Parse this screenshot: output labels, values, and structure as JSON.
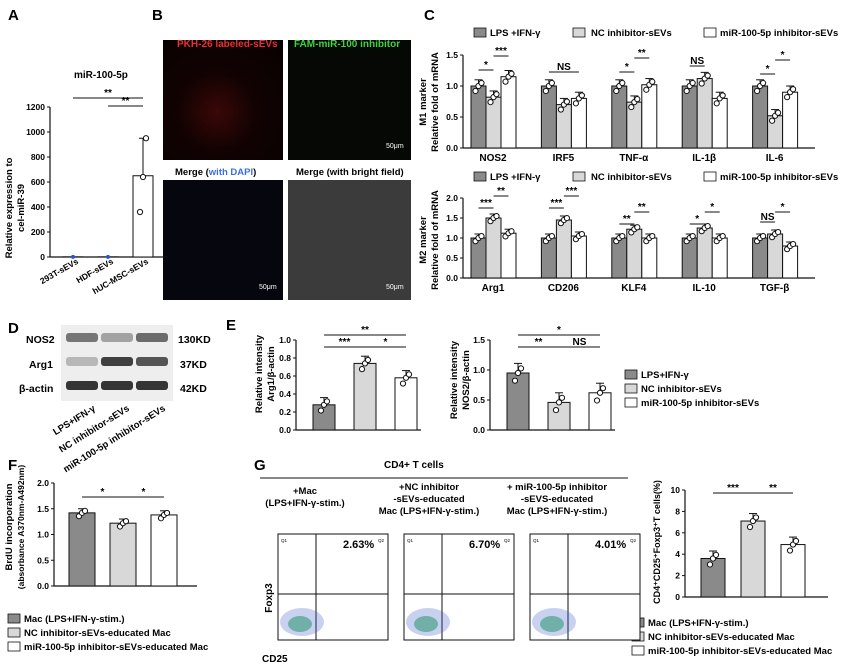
{
  "colors": {
    "dark_gray": "#8a8a8a",
    "light_gray": "#d8d8d8",
    "white": "#ffffff",
    "axis": "#111111"
  },
  "chart_data": [
    {
      "panel": "A",
      "type": "bar",
      "title": "miR-100-5p",
      "ylabel": "Relative expression to cel-miR-39",
      "categories": [
        "293T-sEVs",
        "HDF-sEVs",
        "hUC-MSC-sEVs"
      ],
      "values": [
        1,
        1,
        650
      ],
      "ylim": [
        0,
        1200
      ],
      "yticks": [
        0,
        200,
        400,
        600,
        800,
        1000,
        1200
      ],
      "annotations": [
        "**",
        "**"
      ]
    },
    {
      "panel": "B",
      "type": "table",
      "images": [
        "PKH-26 labeled-sEVs",
        "FAM-miR-100 inhibitor",
        "Merge (with DAPI)",
        "Merge (with bright field)"
      ],
      "scale_bar": "50μm"
    },
    {
      "panel": "C-M1",
      "type": "bar",
      "ylabel": "M1 marker Relative fold of mRNA",
      "categories": [
        "NOS2",
        "IRF5",
        "TNF-α",
        "IL-1β",
        "IL-6"
      ],
      "series": [
        {
          "name": "LPS +IFN-γ",
          "values": [
            1.0,
            1.0,
            1.0,
            1.0,
            1.0
          ]
        },
        {
          "name": "NC  inhibitor-sEVs",
          "values": [
            0.82,
            0.7,
            0.74,
            1.12,
            0.52
          ]
        },
        {
          "name": "miR-100-5p inhibitor-sEVs",
          "values": [
            1.15,
            0.8,
            1.02,
            0.8,
            0.9
          ]
        }
      ],
      "ylim": [
        0,
        1.5
      ],
      "yticks": [
        0.0,
        0.5,
        1.0,
        1.5
      ],
      "annotations": [
        "*",
        "***",
        "NS",
        "*",
        "**",
        "NS",
        "*",
        "*"
      ]
    },
    {
      "panel": "C-M2",
      "type": "bar",
      "ylabel": "M2 marker Relative fold of mRNA",
      "categories": [
        "Arg1",
        "CD206",
        "KLF4",
        "IL-10",
        "TGF-β"
      ],
      "series": [
        {
          "name": "LPS +IFN-γ",
          "values": [
            1.0,
            1.0,
            1.0,
            1.0,
            1.0
          ]
        },
        {
          "name": "NC  inhibitor-sEVs",
          "values": [
            1.5,
            1.45,
            1.22,
            1.25,
            1.1
          ]
        },
        {
          "name": "miR-100-5p inhibitor-sEVs",
          "values": [
            1.12,
            1.05,
            1.0,
            1.0,
            0.8
          ]
        }
      ],
      "ylim": [
        0,
        2.0
      ],
      "yticks": [
        0.0,
        0.5,
        1.0,
        1.5,
        2.0
      ],
      "annotations": [
        "***",
        "**",
        "***",
        "***",
        "**",
        "**",
        "*",
        "*",
        "NS",
        "*"
      ]
    },
    {
      "panel": "E-left",
      "type": "bar",
      "ylabel": "Relative intensity Arg1/β-actin",
      "categories": [
        "LPS+IFN-γ",
        "NC inhibitor-sEVs",
        "miR-100-5p inhibitor-sEVs"
      ],
      "values": [
        0.28,
        0.74,
        0.58
      ],
      "ylim": [
        0,
        1.0
      ],
      "yticks": [
        0.0,
        0.2,
        0.4,
        0.6,
        0.8,
        1.0
      ],
      "annotations": [
        "**",
        "***",
        "*"
      ]
    },
    {
      "panel": "E-right",
      "type": "bar",
      "ylabel": "Relative intensity NOS2/β-actin",
      "categories": [
        "LPS+IFN-γ",
        "NC inhibitor-sEVs",
        "miR-100-5p inhibitor-sEVs"
      ],
      "values": [
        0.95,
        0.46,
        0.62
      ],
      "ylim": [
        0,
        1.5
      ],
      "yticks": [
        0.0,
        0.5,
        1.0,
        1.5
      ],
      "annotations": [
        "*",
        "**",
        "NS"
      ]
    },
    {
      "panel": "F",
      "type": "bar",
      "ylabel": "BrdU incorporation (absorbance A370nm-A492nm)",
      "categories": [
        "Mac (LPS+IFN-γ-stim.)",
        "NC inhibitor-sEVs-educated Mac",
        "miR-100-5p inhibitor-sEVs-educated Mac"
      ],
      "values": [
        1.42,
        1.22,
        1.38
      ],
      "ylim": [
        0,
        2.0
      ],
      "yticks": [
        0.0,
        0.5,
        1.0,
        1.5,
        2.0
      ],
      "annotations": [
        "*",
        "*"
      ]
    },
    {
      "panel": "G-flow",
      "type": "scatter",
      "xlabel": "CD25",
      "ylabel": "Foxp3",
      "header": "CD4+ T cells",
      "plots": [
        {
          "title": "+Mac (LPS+IFN-γ-stim.)",
          "percent": "2.63%"
        },
        {
          "title": "+NC inhibitor -sEVs-educated Mac (LPS+IFN-γ-stim.)",
          "percent": "6.70%"
        },
        {
          "title": "+ miR-100-5p inhibitor -sEVS-educated Mac (LPS+IFN-γ-stim.)",
          "percent": "4.01%"
        }
      ]
    },
    {
      "panel": "G-bar",
      "type": "bar",
      "ylabel": "CD4⁺CD25⁺Foxp3⁺T cells(%)",
      "categories": [
        "Mac (LPS+IFN-γ-stim.)",
        "NC inhibitor-sEVs-educated Mac",
        "miR-100-5p inhibitor-sEVs-educated Mac"
      ],
      "values": [
        3.6,
        7.1,
        4.9
      ],
      "ylim": [
        0,
        10
      ],
      "yticks": [
        0,
        2,
        4,
        6,
        8,
        10
      ],
      "annotations": [
        "***",
        "**"
      ]
    }
  ],
  "panels": {
    "A": {
      "letter": "A",
      "title": "miR-100-5p",
      "ylabel_1": "Relative expression to",
      "ylabel_2": "cel-miR-39",
      "xlabels": [
        "293T-sEVs",
        "HDF-sEVs",
        "hUC-MSC-sEVs"
      ],
      "yticks": [
        "0",
        "200",
        "400",
        "600",
        "800",
        "1000",
        "1200"
      ],
      "sig": [
        "**",
        "**"
      ]
    },
    "B": {
      "letter": "B",
      "label_pkh": "PKH-26 labeled-sEVs",
      "label_fam": "FAM-miR-100 inhibitor",
      "label_merge_a": "Merge (",
      "label_merge_b": "with DAPI",
      "label_merge_c": ")",
      "label_merge_bright": "Merge (with bright field)",
      "scale": "50μm"
    },
    "C": {
      "letter": "C",
      "legend": [
        "LPS +IFN-γ",
        "NC  inhibitor-sEVs",
        "miR-100-5p inhibitor-sEVs"
      ],
      "m1_ylabel_1": "M1 marker",
      "m1_ylabel_2": "Relative fold of mRNA",
      "m2_ylabel_1": "M2 marker",
      "m2_ylabel_2": "Relative fold of mRNA",
      "m1_categories": [
        "NOS2",
        "IRF5",
        "TNF-α",
        "IL-1β",
        "IL-6"
      ],
      "m2_categories": [
        "Arg1",
        "CD206",
        "KLF4",
        "IL-10",
        "TGF-β"
      ],
      "m1_yticks": [
        "0.0",
        "0.5",
        "1.0",
        "1.5"
      ],
      "m2_yticks": [
        "0.0",
        "0.5",
        "1.0",
        "1.5",
        "2.0"
      ]
    },
    "D": {
      "letter": "D",
      "bands": [
        "NOS2",
        "Arg1",
        "β-actin"
      ],
      "sizes": [
        "130KD",
        "37KD",
        "42KD"
      ],
      "lanes": [
        "LPS+IFN-γ",
        "NC inhibitor-sEVs",
        "miR-100-5p inhibitor-sEVs"
      ]
    },
    "E": {
      "letter": "E",
      "left_ylabel_1": "Relative intensity",
      "left_ylabel_2": "Arg1/β-actin",
      "right_ylabel_1": "Relative intensity",
      "right_ylabel_2": "NOS2/β-actin",
      "left_yticks": [
        "0.0",
        "0.2",
        "0.4",
        "0.6",
        "0.8",
        "1.0"
      ],
      "right_yticks": [
        "0.0",
        "0.5",
        "1.0",
        "1.5"
      ],
      "legend": [
        "LPS+IFN-γ",
        "NC inhibitor-sEVs",
        "miR-100-5p inhibitor-sEVs"
      ]
    },
    "F": {
      "letter": "F",
      "ylabel_1": "BrdU incorporation",
      "ylabel_2": "(absorbance A370nm-A492nm)",
      "yticks": [
        "0.0",
        "0.5",
        "1.0",
        "1.5",
        "2.0"
      ],
      "legend": [
        "Mac (LPS+IFN-γ-stim.)",
        "NC inhibitor-sEVs-educated Mac",
        "miR-100-5p inhibitor-sEVs-educated Mac"
      ]
    },
    "G": {
      "letter": "G",
      "header": "CD4+ T cells",
      "titles": [
        [
          "+Mac",
          "(LPS+IFN-γ-stim.)"
        ],
        [
          "+NC inhibitor",
          "-sEVs-educated",
          "Mac (LPS+IFN-γ-stim.)"
        ],
        [
          "+ miR-100-5p inhibitor",
          "-sEVS-educated",
          "Mac (LPS+IFN-γ-stim.)"
        ]
      ],
      "percents": [
        "2.63%",
        "6.70%",
        "4.01%"
      ],
      "xlabel": "CD25",
      "ylabel": "Foxp3",
      "quads": [
        "Q1",
        "Q2",
        "Q3",
        "Q4"
      ],
      "bar_ylabel": "CD4⁺CD25⁺Foxp3⁺T cells(%)",
      "bar_yticks": [
        "0",
        "2",
        "4",
        "6",
        "8",
        "10"
      ],
      "legend": [
        "Mac (LPS+IFN-γ-stim.)",
        "NC inhibitor-sEVs-educated Mac",
        "miR-100-5p inhibitor-sEVs-educated Mac"
      ]
    }
  }
}
